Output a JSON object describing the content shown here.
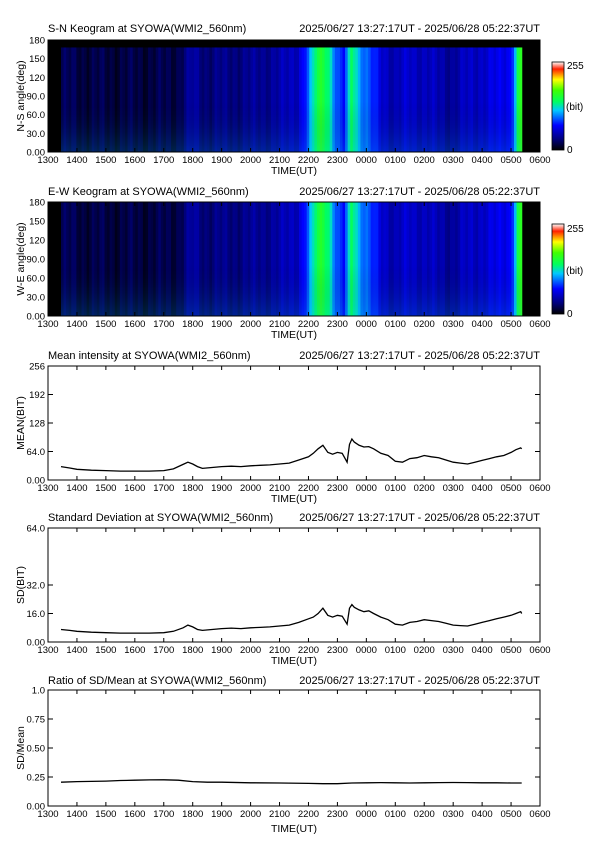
{
  "time_range": "2025/06/27 13:27:17UT - 2025/06/28 05:22:37UT",
  "x_ticks": [
    "1300",
    "1400",
    "1500",
    "1600",
    "1700",
    "1800",
    "1900",
    "2000",
    "2100",
    "2200",
    "2300",
    "0000",
    "0100",
    "0200",
    "0300",
    "0400",
    "0500",
    "0600"
  ],
  "keograms": [
    {
      "title": "S-N Keogram at SYOWA(WMI2_560nm)",
      "ylabel": "N-S angle(deg)",
      "xlabel": "TIME(UT)",
      "y_ticks": [
        "0.00",
        "30.0",
        "60.0",
        "90.0",
        "120",
        "150",
        "180"
      ],
      "colorbar": {
        "max": "255",
        "unit": "(bit)",
        "min": "0"
      }
    },
    {
      "title": "E-W Keogram at SYOWA(WMI2_560nm)",
      "ylabel": "W-E angle(deg)",
      "xlabel": "TIME(UT)",
      "y_ticks": [
        "0.00",
        "30.0",
        "60.0",
        "90.0",
        "120",
        "150",
        "180"
      ],
      "colorbar": {
        "max": "255",
        "unit": "(bit)",
        "min": "0"
      }
    }
  ],
  "line_panels": [
    {
      "title": "Mean intensity at SYOWA(WMI2_560nm)",
      "ylabel": "MEAN(BIT)",
      "xlabel": "TIME(UT)",
      "y_ticks": [
        "0.00",
        "64.0",
        "128",
        "192",
        "256"
      ]
    },
    {
      "title": "Standard Deviation at SYOWA(WMI2_560nm)",
      "ylabel": "SD(BIT)",
      "xlabel": "TIME(UT)",
      "y_ticks": [
        "0.00",
        "16.0",
        "32.0",
        "64.0"
      ]
    },
    {
      "title": "Ratio of SD/Mean at SYOWA(WMI2_560nm)",
      "ylabel": "SD/Mean",
      "xlabel": "TIME(UT)",
      "y_ticks": [
        "0.00",
        "0.25",
        "0.50",
        "0.75",
        "1.0"
      ]
    }
  ],
  "chart_data": [
    {
      "type": "heatmap",
      "title": "S-N Keogram at SYOWA(WMI2_560nm)",
      "xlabel": "TIME(UT)",
      "ylabel": "N-S angle(deg)",
      "x_unit": "hours UT",
      "xlim": [
        "13:00",
        "06:00"
      ],
      "ylim": [
        0,
        180
      ],
      "colorbar_range": [
        0,
        255
      ],
      "colorbar_unit": "bit",
      "data_start": "13:27",
      "data_end": "05:22",
      "intensity_by_time": {
        "times": [
          "13:27",
          "14:00",
          "15:00",
          "16:00",
          "17:00",
          "17:30",
          "18:00",
          "18:30",
          "19:00",
          "20:00",
          "21:00",
          "21:40",
          "22:00",
          "22:15",
          "22:30",
          "22:45",
          "23:00",
          "23:15",
          "23:30",
          "23:45",
          "00:00",
          "00:30",
          "01:00",
          "01:30",
          "02:00",
          "02:30",
          "03:00",
          "03:30",
          "04:00",
          "04:30",
          "05:00",
          "05:15",
          "05:22"
        ],
        "values": [
          20,
          18,
          16,
          16,
          17,
          20,
          40,
          30,
          32,
          35,
          42,
          55,
          90,
          140,
          160,
          130,
          80,
          70,
          150,
          110,
          90,
          60,
          45,
          55,
          50,
          45,
          40,
          50,
          55,
          60,
          70,
          150,
          160
        ]
      },
      "no_data_band_deg": [
        168,
        180
      ]
    },
    {
      "type": "heatmap",
      "title": "E-W Keogram at SYOWA(WMI2_560nm)",
      "xlabel": "TIME(UT)",
      "ylabel": "W-E angle(deg)",
      "x_unit": "hours UT",
      "xlim": [
        "13:00",
        "06:00"
      ],
      "ylim": [
        0,
        180
      ],
      "colorbar_range": [
        0,
        255
      ],
      "colorbar_unit": "bit",
      "data_start": "13:27",
      "data_end": "05:22",
      "intensity_by_time": {
        "times": [
          "13:27",
          "14:00",
          "15:00",
          "16:00",
          "17:00",
          "17:30",
          "18:00",
          "18:30",
          "19:00",
          "20:00",
          "21:00",
          "21:40",
          "22:00",
          "22:15",
          "22:30",
          "22:45",
          "23:00",
          "23:15",
          "23:30",
          "23:45",
          "00:00",
          "00:30",
          "01:00",
          "01:30",
          "02:00",
          "02:30",
          "03:00",
          "03:30",
          "04:00",
          "04:30",
          "05:00",
          "05:15",
          "05:22"
        ],
        "values": [
          20,
          18,
          16,
          16,
          17,
          20,
          40,
          30,
          32,
          35,
          42,
          55,
          90,
          140,
          160,
          130,
          80,
          70,
          150,
          110,
          90,
          60,
          45,
          55,
          50,
          45,
          40,
          50,
          55,
          60,
          70,
          150,
          160
        ]
      }
    },
    {
      "type": "line",
      "title": "Mean intensity at SYOWA(WMI2_560nm)",
      "xlabel": "TIME(UT)",
      "ylabel": "MEAN(BIT)",
      "x_unit": "hours UT",
      "xlim": [
        "13:00",
        "06:00"
      ],
      "ylim": [
        0,
        256
      ],
      "series": [
        {
          "x": [
            "13:27",
            "13:45",
            "14:00",
            "14:30",
            "15:00",
            "15:30",
            "16:00",
            "16:30",
            "17:00",
            "17:20",
            "17:40",
            "17:50",
            "18:00",
            "18:10",
            "18:20",
            "18:40",
            "19:00",
            "19:20",
            "19:40",
            "20:00",
            "20:20",
            "20:40",
            "21:00",
            "21:20",
            "21:40",
            "22:00",
            "22:10",
            "22:20",
            "22:30",
            "22:40",
            "22:50",
            "23:00",
            "23:10",
            "23:20",
            "23:25",
            "23:30",
            "23:35",
            "23:45",
            "23:55",
            "00:05",
            "00:15",
            "00:30",
            "00:45",
            "01:00",
            "01:15",
            "01:30",
            "01:45",
            "02:00",
            "02:15",
            "02:30",
            "02:45",
            "03:00",
            "03:15",
            "03:30",
            "03:45",
            "04:00",
            "04:15",
            "04:30",
            "04:45",
            "05:00",
            "05:10",
            "05:20",
            "05:22"
          ],
          "y": [
            30,
            27,
            24,
            22,
            21,
            20,
            20,
            20,
            21,
            25,
            35,
            40,
            36,
            30,
            26,
            28,
            30,
            31,
            30,
            32,
            33,
            34,
            36,
            38,
            45,
            52,
            60,
            70,
            78,
            62,
            58,
            62,
            60,
            40,
            80,
            92,
            85,
            78,
            74,
            75,
            70,
            60,
            55,
            42,
            40,
            48,
            50,
            55,
            52,
            50,
            45,
            40,
            38,
            36,
            40,
            44,
            48,
            52,
            55,
            62,
            68,
            72,
            70
          ]
        }
      ]
    },
    {
      "type": "line",
      "title": "Standard Deviation at SYOWA(WMI2_560nm)",
      "xlabel": "TIME(UT)",
      "ylabel": "SD(BIT)",
      "x_unit": "hours UT",
      "xlim": [
        "13:00",
        "06:00"
      ],
      "ylim": [
        0,
        64
      ],
      "series": [
        {
          "x": [
            "13:27",
            "13:45",
            "14:00",
            "14:30",
            "15:00",
            "15:30",
            "16:00",
            "16:30",
            "17:00",
            "17:20",
            "17:40",
            "17:50",
            "18:00",
            "18:10",
            "18:20",
            "18:40",
            "19:00",
            "19:20",
            "19:40",
            "20:00",
            "20:20",
            "20:40",
            "21:00",
            "21:20",
            "21:40",
            "22:00",
            "22:10",
            "22:20",
            "22:30",
            "22:40",
            "22:50",
            "23:00",
            "23:10",
            "23:20",
            "23:25",
            "23:30",
            "23:35",
            "23:45",
            "23:55",
            "00:05",
            "00:15",
            "00:30",
            "00:45",
            "01:00",
            "01:15",
            "01:30",
            "01:45",
            "02:00",
            "02:15",
            "02:30",
            "02:45",
            "03:00",
            "03:15",
            "03:30",
            "03:45",
            "04:00",
            "04:15",
            "04:30",
            "04:45",
            "05:00",
            "05:10",
            "05:20",
            "05:22"
          ],
          "y": [
            7,
            6.5,
            6,
            5.5,
            5.2,
            5,
            5,
            5,
            5.2,
            6,
            8,
            9.5,
            8.5,
            7,
            6.5,
            7,
            7.5,
            7.8,
            7.5,
            8,
            8.2,
            8.5,
            9,
            9.5,
            11,
            13,
            14,
            16,
            19,
            15,
            14,
            15,
            14.5,
            10,
            19,
            21,
            19.5,
            18,
            17,
            17.5,
            16,
            14,
            12.5,
            10,
            9.5,
            11,
            11.5,
            12.5,
            12,
            11.5,
            10.5,
            9.5,
            9.2,
            9,
            10,
            11,
            12,
            13,
            14,
            15,
            16,
            17,
            16
          ]
        }
      ]
    },
    {
      "type": "line",
      "title": "Ratio of SD/Mean at SYOWA(WMI2_560nm)",
      "xlabel": "TIME(UT)",
      "ylabel": "SD/Mean",
      "x_unit": "hours UT",
      "xlim": [
        "13:00",
        "06:00"
      ],
      "ylim": [
        0,
        1
      ],
      "series": [
        {
          "x": [
            "13:27",
            "14:00",
            "14:30",
            "15:00",
            "15:30",
            "16:00",
            "16:30",
            "17:00",
            "17:30",
            "18:00",
            "18:30",
            "19:00",
            "20:00",
            "21:00",
            "22:00",
            "22:30",
            "23:00",
            "23:30",
            "00:00",
            "00:30",
            "01:00",
            "01:30",
            "02:00",
            "02:30",
            "03:00",
            "03:30",
            "04:00",
            "04:30",
            "05:00",
            "05:22"
          ],
          "y": [
            0.205,
            0.21,
            0.212,
            0.215,
            0.22,
            0.222,
            0.225,
            0.226,
            0.222,
            0.21,
            0.205,
            0.205,
            0.2,
            0.198,
            0.195,
            0.192,
            0.192,
            0.198,
            0.2,
            0.202,
            0.2,
            0.198,
            0.2,
            0.202,
            0.203,
            0.202,
            0.2,
            0.2,
            0.198,
            0.198
          ]
        }
      ]
    }
  ]
}
